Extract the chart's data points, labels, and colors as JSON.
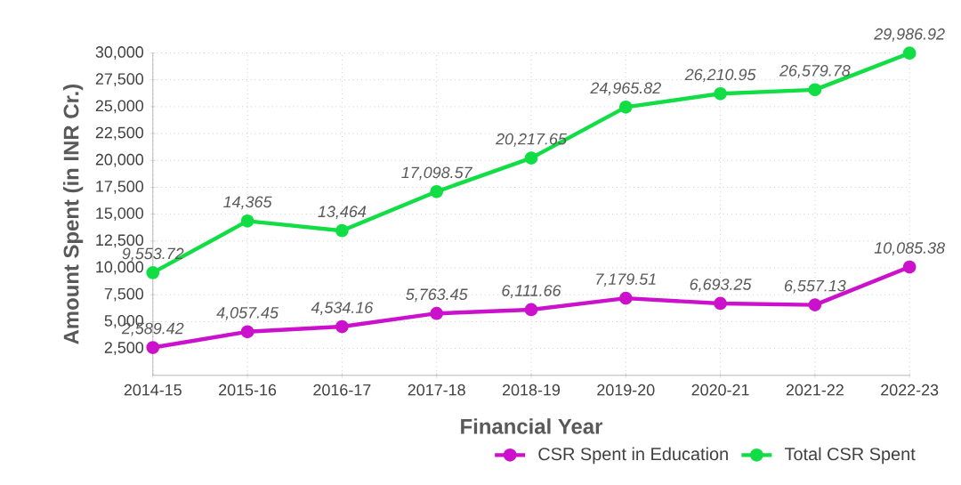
{
  "chart_data": {
    "type": "line",
    "xlabel": "Financial Year",
    "ylabel": "Amount Spent (in INR Cr.)",
    "categories": [
      "2014-15",
      "2015-16",
      "2016-17",
      "2017-18",
      "2018-19",
      "2019-20",
      "2020-21",
      "2021-22",
      "2022-23"
    ],
    "series": [
      {
        "name": "CSR Spent in Education",
        "color": "#cc11cc",
        "values": [
          2589.42,
          4057.45,
          4534.16,
          5763.45,
          6111.66,
          7179.51,
          6693.25,
          6557.13,
          10085.38
        ],
        "value_labels": [
          "2,589.42",
          "4,057.45",
          "4,534.16",
          "5,763.45",
          "6,111.66",
          "7,179.51",
          "6,693.25",
          "6,557.13",
          "10,085.38"
        ]
      },
      {
        "name": "Total CSR Spent",
        "color": "#11dd44",
        "values": [
          9553.72,
          14365,
          13464,
          17098.57,
          20217.65,
          24965.82,
          26210.95,
          26579.78,
          29986.92
        ],
        "value_labels": [
          "9,553.72",
          "14,365",
          "13,464",
          "17,098.57",
          "20,217.65",
          "24,965.82",
          "26,210.95",
          "26,579.78",
          "29,986.92"
        ]
      }
    ],
    "ylim": [
      0,
      30000
    ],
    "yticks": [
      {
        "value": 2500,
        "label": "2,500"
      },
      {
        "value": 5000,
        "label": "5,000"
      },
      {
        "value": 7500,
        "label": "7,500"
      },
      {
        "value": 10000,
        "label": "10,000"
      },
      {
        "value": 12500,
        "label": "12,500"
      },
      {
        "value": 15000,
        "label": "15,000"
      },
      {
        "value": 17500,
        "label": "17,500"
      },
      {
        "value": 20000,
        "label": "20,000"
      },
      {
        "value": 22500,
        "label": "22,500"
      },
      {
        "value": 25000,
        "label": "25,000"
      },
      {
        "value": 27500,
        "label": "27,500"
      },
      {
        "value": 30000,
        "label": "30,000"
      }
    ],
    "grid": true,
    "legend": "bottom right",
    "marker": "circle",
    "line_style": "solid"
  }
}
